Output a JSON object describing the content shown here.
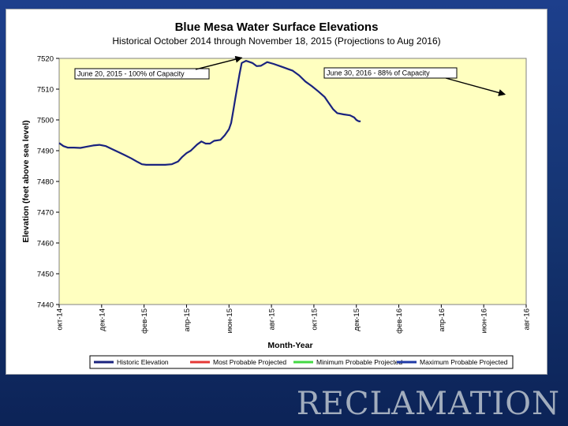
{
  "chart_data": {
    "type": "line",
    "title": "Blue Mesa Water Surface Elevations",
    "subtitle": "Historical October 2014 through November 18, 2015 (Projections to Aug 2016)",
    "xlabel": "Month-Year",
    "ylabel": "Elevation (feet above sea level)",
    "ylim": [
      7440,
      7520
    ],
    "yticks": [
      7440,
      7450,
      7460,
      7470,
      7480,
      7490,
      7500,
      7510,
      7520
    ],
    "xlim": [
      0,
      22
    ],
    "xticks": [
      {
        "x": 0,
        "label": "окт-14"
      },
      {
        "x": 2,
        "label": "дек-14"
      },
      {
        "x": 4,
        "label": "фев-15"
      },
      {
        "x": 6,
        "label": "апр-15"
      },
      {
        "x": 8,
        "label": "июн-15"
      },
      {
        "x": 10,
        "label": "авг-15"
      },
      {
        "x": 12,
        "label": "окт-15"
      },
      {
        "x": 14,
        "label": "дек-15"
      },
      {
        "x": 16,
        "label": "фев-16"
      },
      {
        "x": 18,
        "label": "апр-16"
      },
      {
        "x": 20,
        "label": "июн-16"
      },
      {
        "x": 22,
        "label": "авг-16"
      }
    ],
    "series": [
      {
        "name": "Historic Elevation",
        "color": "#1a237e",
        "x": [
          0,
          0.2,
          0.4,
          0.7,
          1.0,
          1.3,
          1.6,
          1.9,
          2.2,
          2.5,
          2.8,
          3.1,
          3.4,
          3.7,
          3.9,
          4.1,
          4.5,
          5.0,
          5.3,
          5.6,
          5.8,
          6.0,
          6.2,
          6.5,
          6.7,
          6.9,
          7.1,
          7.3,
          7.6,
          7.8,
          8.0,
          8.1,
          8.2,
          8.3,
          8.4,
          8.5,
          8.6,
          8.8,
          8.9,
          9.1,
          9.3,
          9.5,
          9.8,
          10.1,
          10.4,
          10.6,
          10.8,
          11.0,
          11.3,
          11.6,
          11.9,
          12.2,
          12.5,
          12.7,
          12.9,
          13.1,
          13.4,
          13.7,
          13.9,
          14.0,
          14.1,
          14.2
        ],
        "values": [
          7492.5,
          7491.5,
          7491.0,
          7491.0,
          7490.9,
          7491.3,
          7491.7,
          7491.9,
          7491.5,
          7490.5,
          7489.5,
          7488.5,
          7487.5,
          7486.3,
          7485.6,
          7485.4,
          7485.4,
          7485.4,
          7485.6,
          7486.5,
          7488.0,
          7489.2,
          7490.0,
          7492.0,
          7493.0,
          7492.3,
          7492.3,
          7493.2,
          7493.5,
          7495.0,
          7497.0,
          7499.0,
          7503.0,
          7507.0,
          7511.0,
          7515.0,
          7518.5,
          7519.2,
          7519.0,
          7518.5,
          7517.5,
          7517.6,
          7518.8,
          7518.2,
          7517.5,
          7517.0,
          7516.5,
          7516.0,
          7514.5,
          7512.5,
          7511.0,
          7509.3,
          7507.5,
          7505.5,
          7503.5,
          7502.2,
          7501.8,
          7501.5,
          7500.8,
          7500.0,
          7499.6,
          7499.5
        ]
      },
      {
        "name": "Most Probable Projected",
        "color": "#e53935",
        "x": [],
        "values": []
      },
      {
        "name": "Minimum Probable Projected",
        "color": "#43d943",
        "x": [],
        "values": []
      },
      {
        "name": "Maximum Probable Projected",
        "color": "#1f3aa6",
        "x": [],
        "values": []
      }
    ],
    "annotations": [
      {
        "text": "June 20, 2015 - 100% of Capacity",
        "point_x": 8.6,
        "point_y": 7520.2
      },
      {
        "text": "June 30, 2016 - 88% of Capacity",
        "point_x": 21.0,
        "point_y": 7508.3
      }
    ],
    "legend_position": "bottom",
    "grid": false,
    "plot_background": "#ffffc0"
  },
  "brand": {
    "text": "RECLAMATION"
  }
}
